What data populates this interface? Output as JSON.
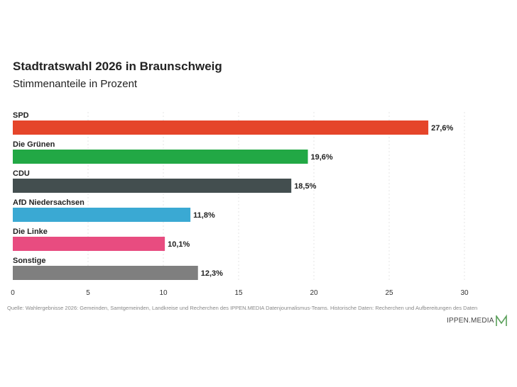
{
  "header": {
    "title": "Stadtratswahl 2026 in Braunschweig",
    "subtitle": "Stimmenanteile in Prozent"
  },
  "chart_data": {
    "type": "bar",
    "orientation": "horizontal",
    "categories": [
      "SPD",
      "Die Grünen",
      "CDU",
      "AfD Niedersachsen",
      "Die Linke",
      "Sonstige"
    ],
    "values": [
      27.6,
      19.6,
      18.5,
      11.8,
      10.1,
      12.3
    ],
    "value_labels": [
      "27,6%",
      "19,6%",
      "18,5%",
      "11,8%",
      "10,1%",
      "12,3%"
    ],
    "colors": [
      "#e5452a",
      "#22a845",
      "#434e4f",
      "#3aa9d3",
      "#e84c80",
      "#7f7f7f"
    ],
    "title": "Stadtratswahl 2026 in Braunschweig",
    "subtitle": "Stimmenanteile in Prozent",
    "xlabel": "",
    "ylabel": "",
    "xlim": [
      0,
      30
    ],
    "xticks": [
      0,
      5,
      10,
      15,
      20,
      25,
      30
    ],
    "xtick_labels": [
      "0",
      "5",
      "10",
      "15",
      "20",
      "25",
      "30"
    ],
    "grid": true
  },
  "footer": {
    "source": "Quelle: Wahlergebnisse 2026: Gemeinden, Samtgemeinden, Landkreise und Recherchen des IPPEN.MEDIA Datenjournalismus-Teams. Historische Daten: Recherchen und Aufbereitungen des Daten",
    "logo_text": "IPPEN.MEDIA",
    "logo_color": "#5aa05a"
  }
}
